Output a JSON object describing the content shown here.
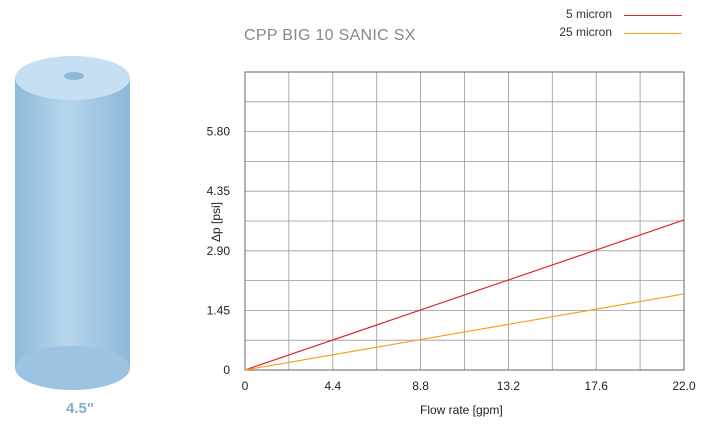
{
  "product": {
    "size_label": "4.5\"",
    "colors": {
      "body": "#a9cdea",
      "shade": "#8db8dc",
      "top": "#c4def2"
    }
  },
  "chart_data": {
    "type": "line",
    "title": "CPP BIG 10 SANIC SX",
    "xlabel": "Flow rate [gpm]",
    "ylabel": "Δp [psi]",
    "xlim": [
      0,
      22.0
    ],
    "ylim": [
      0,
      7.25
    ],
    "x_ticks": [
      "0",
      "4.4",
      "8.8",
      "13.2",
      "17.6",
      "22.0"
    ],
    "y_ticks": [
      "0",
      "1.45",
      "2.90",
      "4.35",
      "5.80"
    ],
    "grid": true,
    "legend_position": "top-right",
    "series": [
      {
        "name": "5 micron",
        "color": "#e0262a",
        "x": [
          0,
          22.0
        ],
        "y": [
          0,
          3.65
        ]
      },
      {
        "name": "25 micron",
        "color": "#f5a01e",
        "x": [
          0,
          22.0
        ],
        "y": [
          0,
          1.85
        ]
      }
    ]
  }
}
